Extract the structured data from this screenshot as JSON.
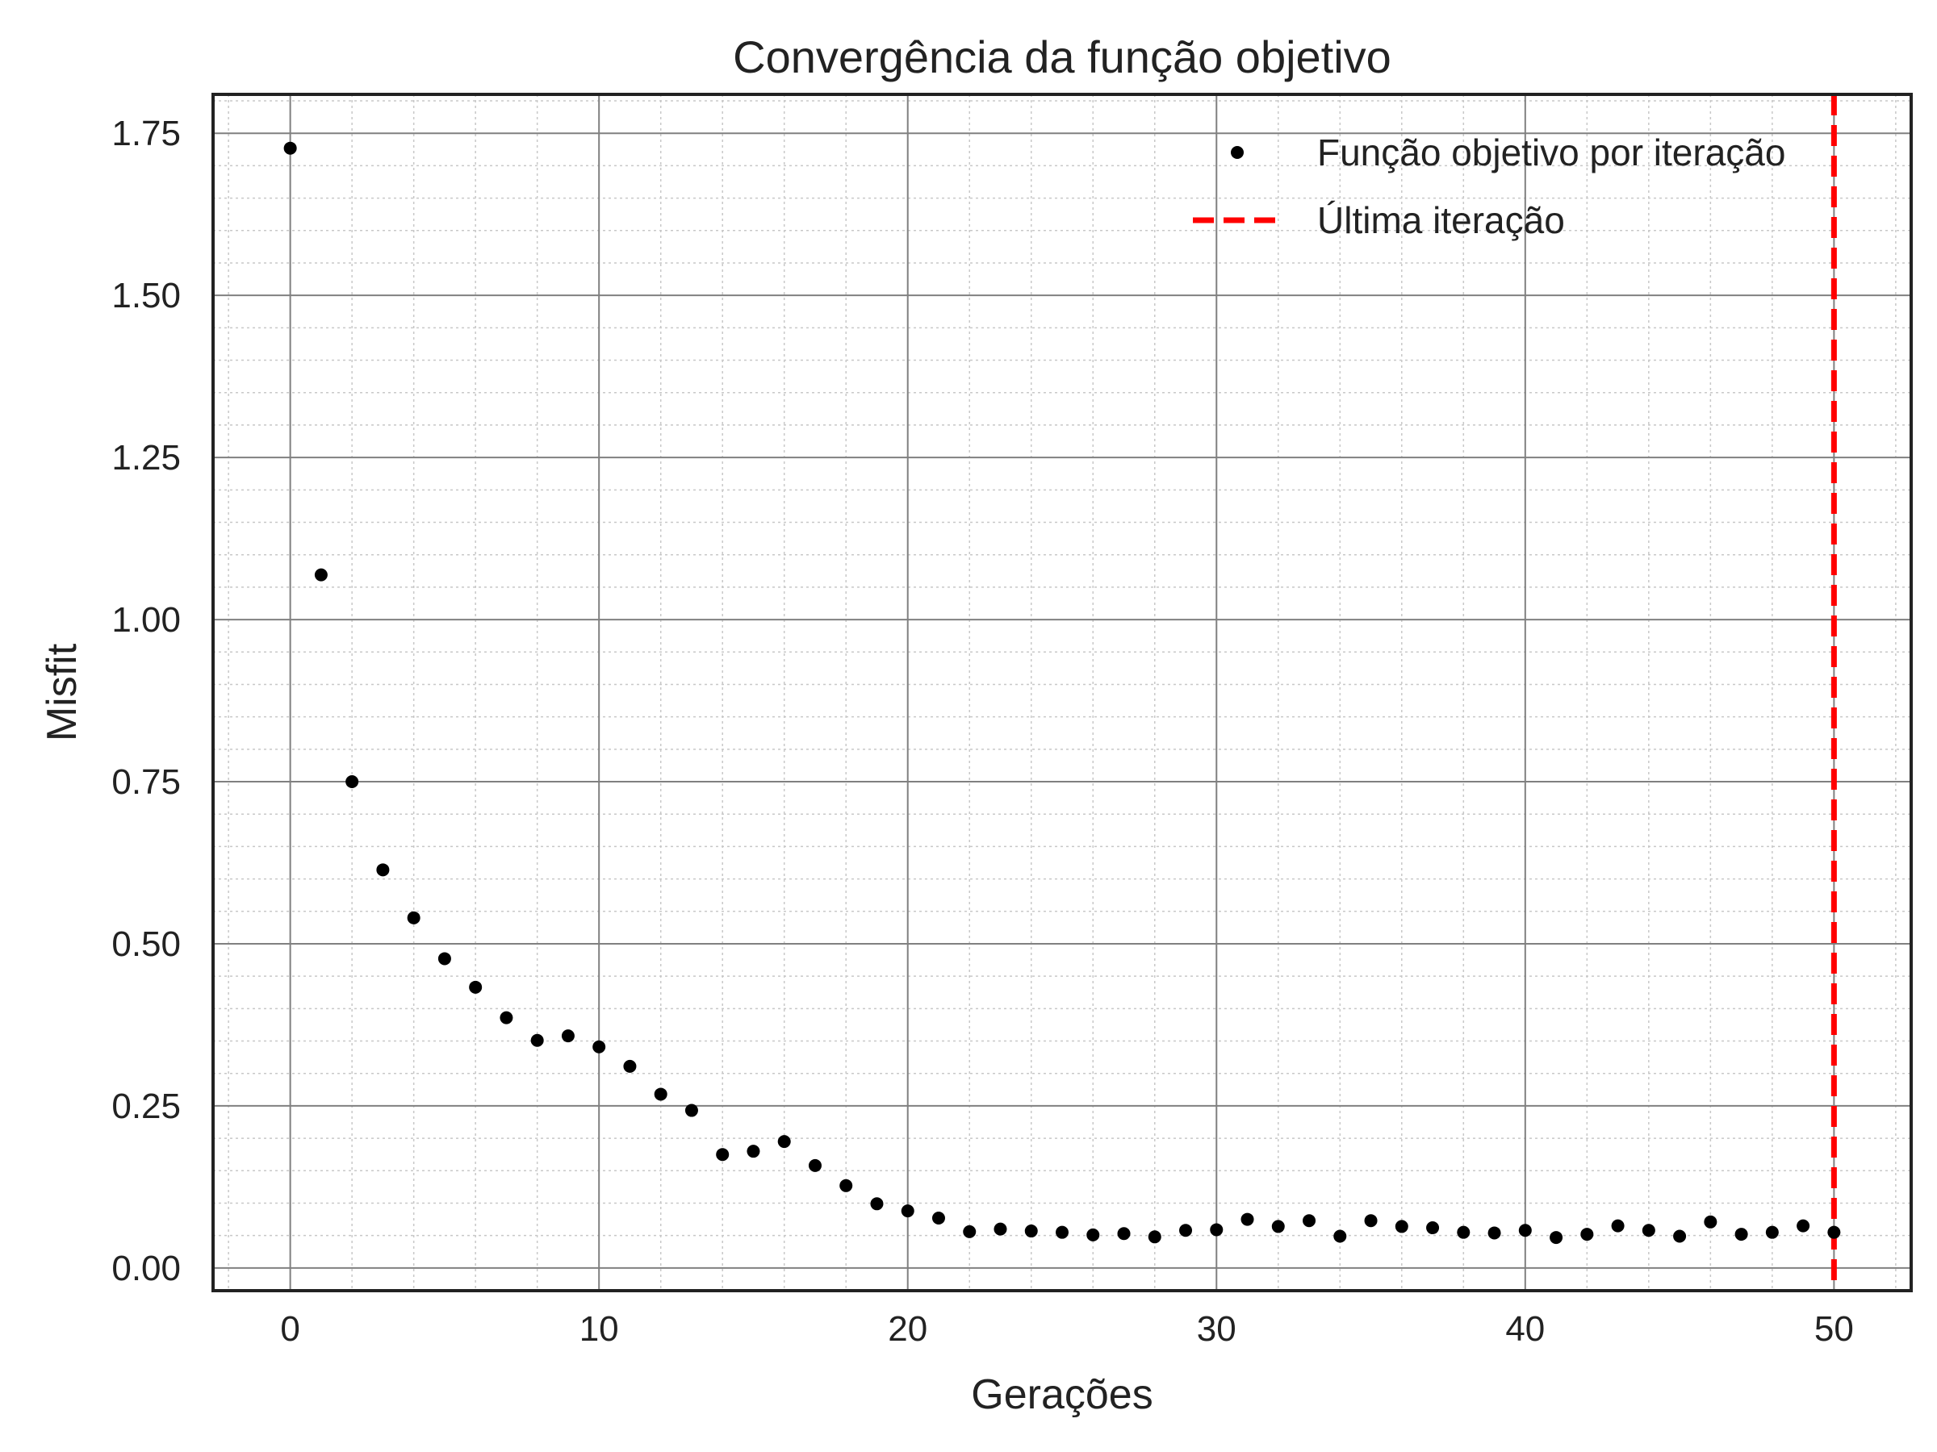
{
  "chart_data": {
    "type": "scatter",
    "title": "Convergência da função objetivo",
    "xlabel": "Gerações",
    "ylabel": "Misfit",
    "xlim": [
      -2.5,
      52.5
    ],
    "ylim": [
      -0.035,
      1.81
    ],
    "xticks": [
      0,
      10,
      20,
      30,
      40,
      50
    ],
    "xtick_labels": [
      "0",
      "10",
      "20",
      "30",
      "40",
      "50"
    ],
    "yticks": [
      0.0,
      0.25,
      0.5,
      0.75,
      1.0,
      1.25,
      1.5,
      1.75
    ],
    "ytick_labels": [
      "0.00",
      "0.25",
      "0.50",
      "0.75",
      "1.00",
      "1.25",
      "1.50",
      "1.75"
    ],
    "grid": "major solid, minor dotted",
    "legend_position": "top-right",
    "series": [
      {
        "name": "Função objetivo por iteração",
        "marker": "dot",
        "color": "#000000",
        "x": [
          0,
          1,
          2,
          3,
          4,
          5,
          6,
          7,
          8,
          9,
          10,
          11,
          12,
          13,
          14,
          15,
          16,
          17,
          18,
          19,
          20,
          21,
          22,
          23,
          24,
          25,
          26,
          27,
          28,
          29,
          30,
          31,
          32,
          33,
          34,
          35,
          36,
          37,
          38,
          39,
          40,
          41,
          42,
          43,
          44,
          45,
          46,
          47,
          48,
          49,
          50
        ],
        "y": [
          1.727,
          1.069,
          0.75,
          0.614,
          0.54,
          0.477,
          0.433,
          0.386,
          0.351,
          0.358,
          0.341,
          0.311,
          0.268,
          0.243,
          0.175,
          0.18,
          0.195,
          0.158,
          0.127,
          0.099,
          0.088,
          0.077,
          0.056,
          0.06,
          0.057,
          0.055,
          0.051,
          0.053,
          0.048,
          0.058,
          0.059,
          0.075,
          0.064,
          0.073,
          0.049,
          0.073,
          0.064,
          0.062,
          0.055,
          0.054,
          0.058,
          0.047,
          0.052,
          0.065,
          0.058,
          0.049,
          0.071,
          0.052,
          0.055,
          0.065,
          0.055
        ]
      },
      {
        "name": "Última iteração",
        "type": "vline",
        "x": 50,
        "color": "#ff0000",
        "style": "dashed"
      }
    ]
  }
}
